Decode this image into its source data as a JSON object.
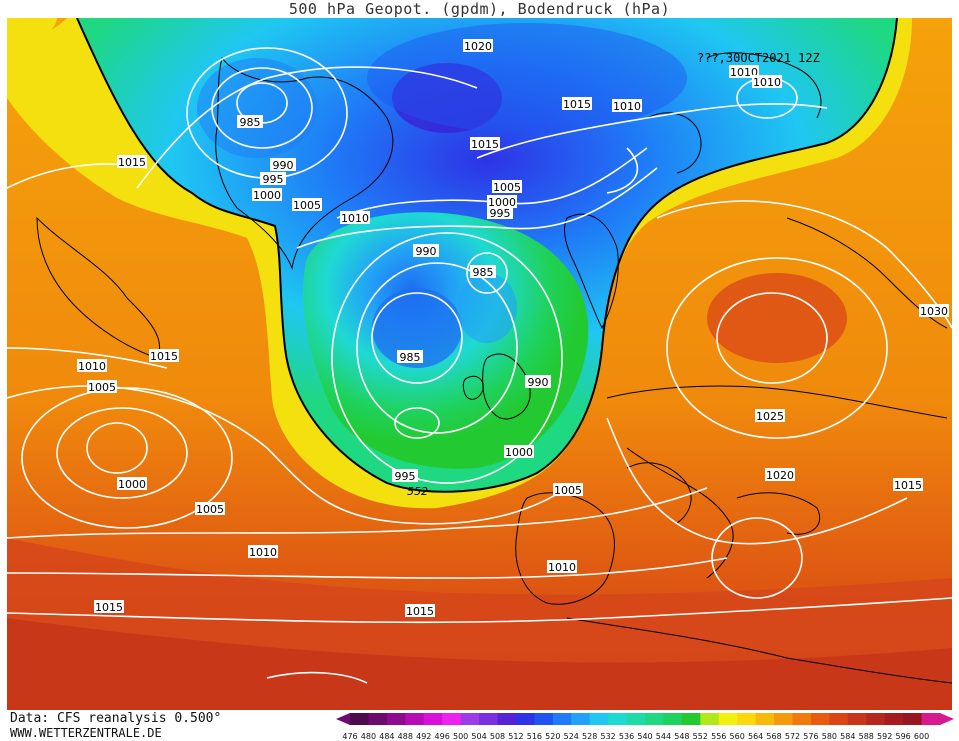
{
  "title": "500 hPa Geopot. (gpdm), Bodendruck (hPa)",
  "run_label": "???,30OCT2021 12Z",
  "footer": {
    "data_source": "Data: CFS reanalysis 0.500°",
    "site": "WWW.WETTERZENTRALE.DE"
  },
  "legend": {
    "values": [
      "476",
      "480",
      "484",
      "488",
      "492",
      "496",
      "500",
      "504",
      "508",
      "512",
      "516",
      "520",
      "524",
      "528",
      "532",
      "536",
      "540",
      "544",
      "548",
      "552",
      "556",
      "560",
      "564",
      "568",
      "572",
      "576",
      "580",
      "584",
      "588",
      "592",
      "596",
      "600"
    ],
    "colors": [
      "#4b0b4e",
      "#6e0b6e",
      "#8e0a8e",
      "#b50cb5",
      "#d80fd8",
      "#ee22ee",
      "#9b3ce6",
      "#7a30e0",
      "#5522d8",
      "#2e33e6",
      "#1e54f0",
      "#1f7bf7",
      "#22a2f7",
      "#1fc7f2",
      "#1fd9d3",
      "#1fdbaa",
      "#1ed882",
      "#1fd25d",
      "#22c930",
      "#b0e81a",
      "#f3f00e",
      "#fbd70b",
      "#f8b90b",
      "#f59a0b",
      "#f07a0c",
      "#e95b10",
      "#dc4316",
      "#c8351a",
      "#b4281d",
      "#a51d1f",
      "#981620",
      "#d61a8f"
    ],
    "arrow_left_color": "#6e0b6e",
    "arrow_right_color": "#d61a8f"
  },
  "contour_label_552": "552",
  "isobar_labels": [
    "1020",
    "1015",
    "1010",
    "1010",
    "1010",
    "985",
    "990",
    "995",
    "1000",
    "1005",
    "1015",
    "1010",
    "1005",
    "1000",
    "995",
    "990",
    "985",
    "985",
    "990",
    "1015",
    "1015",
    "1010",
    "1005",
    "1000",
    "995",
    "1000",
    "1005",
    "1030",
    "1025",
    "1020",
    "1015",
    "1005",
    "1010",
    "1010",
    "1015",
    "1015"
  ],
  "colors": {
    "background": "#ffffff",
    "isobar": "#ffffff",
    "coast": "#000000",
    "deep_blue": "#3a1fd6",
    "blue": "#1e6ef0",
    "cyan": "#1fc7f2",
    "green": "#20c946",
    "yellow": "#f3f00e",
    "orange": "#f59a0b",
    "red": "#c8351a"
  }
}
